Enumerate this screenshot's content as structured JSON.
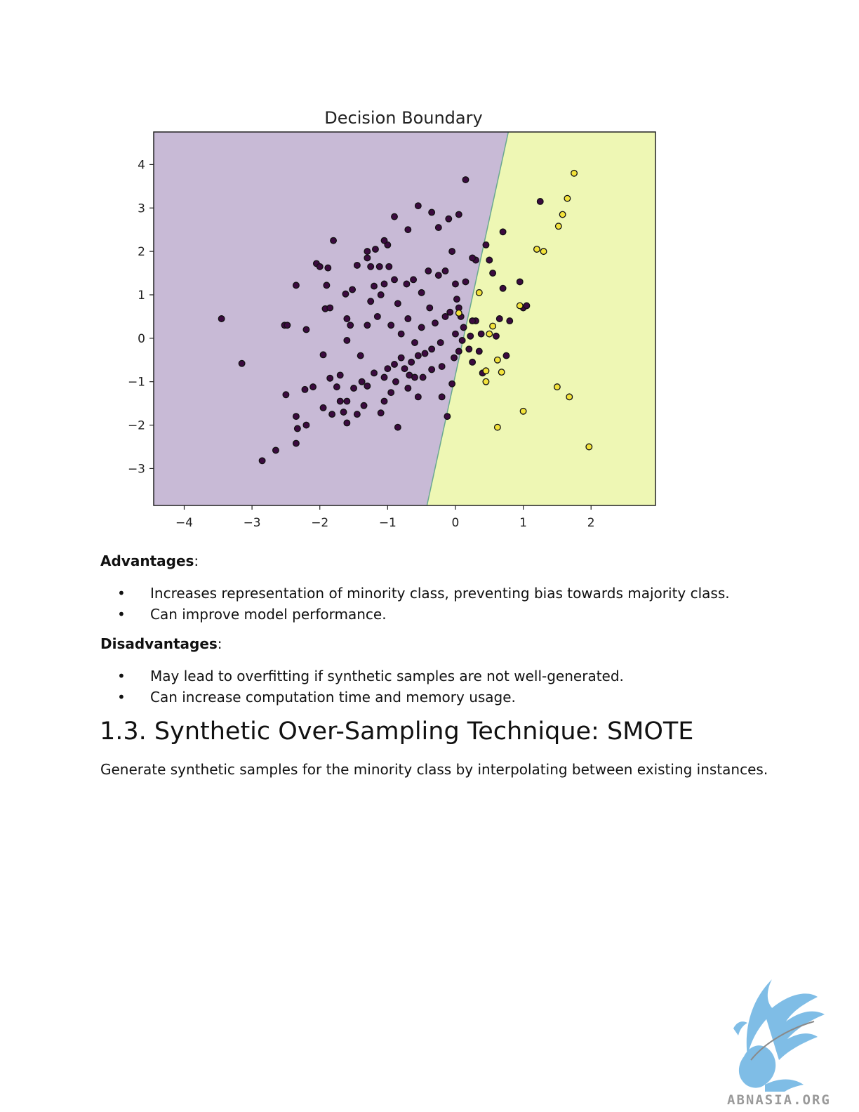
{
  "chart_data": {
    "type": "scatter",
    "title": "Decision Boundary",
    "xlabel": "",
    "ylabel": "",
    "xlim": [
      -4.45,
      2.95
    ],
    "ylim": [
      -3.85,
      4.75
    ],
    "xticks": [
      -4,
      -3,
      -2,
      -1,
      0,
      1,
      2
    ],
    "yticks": [
      -3,
      -2,
      -1,
      0,
      1,
      2,
      3,
      4
    ],
    "xtick_labels": [
      "−4",
      "−3",
      "−2",
      "−1",
      "0",
      "1",
      "2"
    ],
    "ytick_labels": [
      "−3",
      "−2",
      "−1",
      "0",
      "1",
      "2",
      "3",
      "4"
    ],
    "grid": false,
    "decision_boundary": {
      "bottom": [
        -0.42,
        -3.85
      ],
      "top": [
        0.78,
        4.75
      ]
    },
    "colors": {
      "region_class0": "#c8bad6",
      "region_class1": "#eef7b4",
      "boundary": "#6aa890",
      "point_class0": "#3b0a3f",
      "point_class1": "#f2e23a",
      "point_edge": "#111111",
      "axes": "#222222"
    },
    "series": [
      {
        "class": 0,
        "points": [
          [
            -3.45,
            0.45
          ],
          [
            -3.15,
            -0.58
          ],
          [
            -2.85,
            -2.82
          ],
          [
            -2.65,
            -2.58
          ],
          [
            -2.5,
            -1.3
          ],
          [
            -2.52,
            0.3
          ],
          [
            -2.48,
            0.3
          ],
          [
            -2.35,
            -1.8
          ],
          [
            -2.33,
            -2.08
          ],
          [
            -2.35,
            -2.42
          ],
          [
            -2.35,
            1.22
          ],
          [
            -2.2,
            -2.0
          ],
          [
            -2.22,
            -1.18
          ],
          [
            -2.2,
            0.2
          ],
          [
            -2.1,
            -1.12
          ],
          [
            -2.05,
            1.72
          ],
          [
            -2.0,
            1.65
          ],
          [
            -1.95,
            -1.6
          ],
          [
            -1.95,
            -0.38
          ],
          [
            -1.92,
            0.68
          ],
          [
            -1.9,
            1.22
          ],
          [
            -1.88,
            1.62
          ],
          [
            -1.85,
            -0.92
          ],
          [
            -1.82,
            -1.75
          ],
          [
            -1.85,
            0.7
          ],
          [
            -1.8,
            2.25
          ],
          [
            -1.75,
            -1.12
          ],
          [
            -1.7,
            -1.45
          ],
          [
            -1.7,
            -0.85
          ],
          [
            -1.65,
            -1.7
          ],
          [
            -1.6,
            -1.95
          ],
          [
            -1.6,
            -1.45
          ],
          [
            -1.62,
            1.02
          ],
          [
            -1.6,
            0.45
          ],
          [
            -1.6,
            -0.05
          ],
          [
            -1.55,
            0.3
          ],
          [
            -1.52,
            1.12
          ],
          [
            -1.5,
            -1.15
          ],
          [
            -1.45,
            1.68
          ],
          [
            -1.45,
            -1.75
          ],
          [
            -1.4,
            -0.4
          ],
          [
            -1.38,
            -1.0
          ],
          [
            -1.35,
            -1.55
          ],
          [
            -1.3,
            0.3
          ],
          [
            -1.3,
            1.85
          ],
          [
            -1.3,
            -1.1
          ],
          [
            -1.25,
            1.65
          ],
          [
            -1.25,
            0.85
          ],
          [
            -1.2,
            -0.8
          ],
          [
            -1.2,
            1.2
          ],
          [
            -1.18,
            2.05
          ],
          [
            -1.15,
            0.5
          ],
          [
            -1.12,
            1.65
          ],
          [
            -1.1,
            -1.72
          ],
          [
            -1.1,
            1.0
          ],
          [
            -1.05,
            -0.9
          ],
          [
            -1.05,
            1.25
          ],
          [
            -1.05,
            -1.45
          ],
          [
            -1.0,
            -0.7
          ],
          [
            -1.0,
            2.15
          ],
          [
            -0.98,
            1.65
          ],
          [
            -0.95,
            0.3
          ],
          [
            -0.95,
            -1.25
          ],
          [
            -0.9,
            -0.6
          ],
          [
            -0.9,
            1.35
          ],
          [
            -0.88,
            -1.0
          ],
          [
            -0.85,
            0.8
          ],
          [
            -0.85,
            -2.05
          ],
          [
            -0.8,
            -0.45
          ],
          [
            -0.8,
            0.1
          ],
          [
            -0.75,
            -0.7
          ],
          [
            -0.72,
            1.25
          ],
          [
            -0.7,
            -1.15
          ],
          [
            -0.7,
            0.45
          ],
          [
            -0.68,
            -0.85
          ],
          [
            -0.65,
            -0.55
          ],
          [
            -0.62,
            1.35
          ],
          [
            -0.6,
            -0.9
          ],
          [
            -0.6,
            -0.1
          ],
          [
            -0.55,
            -0.4
          ],
          [
            -0.55,
            -1.35
          ],
          [
            -0.5,
            0.25
          ],
          [
            -0.5,
            1.05
          ],
          [
            -0.48,
            -0.9
          ],
          [
            -0.45,
            -0.35
          ],
          [
            -0.4,
            1.55
          ],
          [
            -0.38,
            0.7
          ],
          [
            -0.35,
            -0.25
          ],
          [
            -0.35,
            -0.72
          ],
          [
            -0.3,
            0.35
          ],
          [
            -0.25,
            1.45
          ],
          [
            -0.22,
            -0.1
          ],
          [
            -0.2,
            -0.65
          ],
          [
            -0.2,
            -1.35
          ],
          [
            -0.15,
            1.55
          ],
          [
            -0.15,
            0.5
          ],
          [
            -0.12,
            -1.8
          ],
          [
            -0.08,
            0.6
          ],
          [
            -0.05,
            2.0
          ],
          [
            -0.05,
            -1.05
          ],
          [
            -0.02,
            -0.45
          ],
          [
            0.0,
            0.1
          ],
          [
            0.0,
            1.25
          ],
          [
            0.02,
            0.9
          ],
          [
            0.05,
            -0.3
          ],
          [
            0.05,
            0.7
          ],
          [
            0.08,
            0.5
          ],
          [
            0.1,
            -0.05
          ],
          [
            0.12,
            0.25
          ],
          [
            0.15,
            1.3
          ],
          [
            0.2,
            -0.25
          ],
          [
            0.22,
            0.05
          ],
          [
            0.25,
            -0.55
          ],
          [
            0.3,
            0.4
          ],
          [
            0.35,
            -0.3
          ],
          [
            0.38,
            0.1
          ],
          [
            0.4,
            -0.8
          ],
          [
            0.45,
            2.15
          ],
          [
            0.5,
            1.8
          ],
          [
            0.55,
            1.5
          ],
          [
            0.6,
            0.05
          ],
          [
            0.65,
            0.45
          ],
          [
            0.7,
            1.15
          ],
          [
            0.75,
            -0.4
          ],
          [
            0.15,
            3.65
          ],
          [
            0.05,
            2.85
          ],
          [
            -0.1,
            2.75
          ],
          [
            -0.25,
            2.55
          ],
          [
            -0.35,
            2.9
          ],
          [
            -0.55,
            3.05
          ],
          [
            -0.7,
            2.5
          ],
          [
            -0.9,
            2.8
          ],
          [
            -1.05,
            2.25
          ],
          [
            -1.3,
            2.0
          ],
          [
            0.8,
            0.4
          ],
          [
            0.95,
            1.3
          ],
          [
            1.0,
            0.7
          ],
          [
            1.05,
            0.75
          ],
          [
            1.25,
            3.15
          ],
          [
            0.7,
            2.45
          ],
          [
            0.3,
            1.8
          ],
          [
            0.25,
            1.85
          ],
          [
            0.25,
            0.4
          ]
        ]
      },
      {
        "class": 1,
        "points": [
          [
            0.05,
            0.58
          ],
          [
            0.35,
            1.05
          ],
          [
            0.45,
            -0.75
          ],
          [
            0.45,
            -1.0
          ],
          [
            0.5,
            0.1
          ],
          [
            0.55,
            0.28
          ],
          [
            0.62,
            -0.5
          ],
          [
            0.68,
            -0.78
          ],
          [
            0.62,
            -2.05
          ],
          [
            0.95,
            0.75
          ],
          [
            1.0,
            -1.68
          ],
          [
            1.2,
            2.05
          ],
          [
            1.3,
            2.0
          ],
          [
            1.5,
            -1.12
          ],
          [
            1.52,
            2.58
          ],
          [
            1.58,
            2.85
          ],
          [
            1.65,
            3.22
          ],
          [
            1.68,
            -1.35
          ],
          [
            1.75,
            3.8
          ],
          [
            1.97,
            -2.5
          ]
        ]
      }
    ]
  },
  "advantages": {
    "label": "Advantages",
    "colon": ":",
    "items": [
      "Increases representation of minority class, preventing bias towards majority class.",
      "Can improve model performance."
    ]
  },
  "disadvantages": {
    "label": "Disadvantages",
    "colon": ":",
    "items": [
      "May lead to overfitting if synthetic samples are not well-generated.",
      "Can increase computation time and memory usage."
    ]
  },
  "section": {
    "heading": "1.3. Synthetic Over-Sampling Technique: SMOTE",
    "paragraph": "Generate synthetic samples for the minority class by interpolating between existing instances."
  },
  "logo": {
    "text": "ABNASIA.ORG",
    "icon": "griffin-logo-icon",
    "color": "#7fbde6"
  }
}
